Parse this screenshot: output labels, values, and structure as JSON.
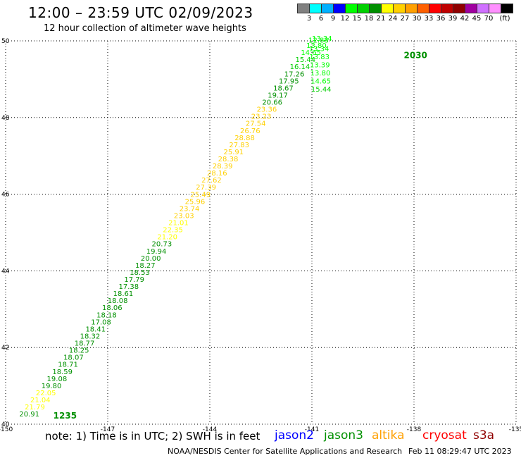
{
  "header": {
    "title": "12:00 – 23:59 UTC 02/09/2023",
    "subtitle": "12 hour collection of altimeter wave heights"
  },
  "colorbar": {
    "unit": "(ft)",
    "colors": [
      "#808080",
      "#00ffff",
      "#00b0ff",
      "#0000ff",
      "#00ff00",
      "#00d000",
      "#009000",
      "#ffff00",
      "#ffd000",
      "#ffa000",
      "#ff6000",
      "#ff0000",
      "#c00000",
      "#900000",
      "#a000a0",
      "#d070ff",
      "#ff90ff",
      "#000000"
    ],
    "labels": [
      "3",
      "6",
      "9",
      "12",
      "15",
      "18",
      "21",
      "24",
      "27",
      "30",
      "33",
      "36",
      "39",
      "42",
      "45",
      "70"
    ]
  },
  "map": {
    "x_ticks": [
      "-150",
      "-147",
      "-144",
      "-141",
      "-138",
      "-135"
    ],
    "y_ticks": [
      "50",
      "48",
      "46",
      "44",
      "42",
      "40"
    ],
    "lon_range": [
      -150,
      -135
    ],
    "lat_range": [
      40,
      50
    ],
    "gridlines": true
  },
  "footer": {
    "note": "note:  1) Time is in UTC; 2) SWH is in feet",
    "legend": [
      {
        "name": "jason2",
        "color": "#0000ff"
      },
      {
        "name": "jason3",
        "color": "#009000"
      },
      {
        "name": "altika",
        "color": "#ffa000"
      },
      {
        "name": "cryosat",
        "color": "#ff0000"
      },
      {
        "name": "s3a",
        "color": "#900000"
      }
    ],
    "credit": "NOAA/NESDIS Center for Satellite Applications and Research",
    "timestamp": "Feb 11 08:29:47 UTC 2023"
  },
  "chart_data": {
    "type": "scatter",
    "title": "12:00 – 23:59 UTC 02/09/2023",
    "subtitle": "12 hour collection of altimeter wave heights",
    "xlim": [
      -150,
      -135
    ],
    "ylim": [
      40,
      50
    ],
    "tracks": [
      {
        "time_label": "1235",
        "label_pos": [
          -148.6,
          40.15
        ],
        "start": [
          -149.6,
          40.2
        ],
        "end": [
          -141.0,
          50.0
        ],
        "values": [
          20.91,
          21.79,
          21.04,
          22.05,
          19.8,
          19.08,
          18.59,
          18.71,
          18.07,
          18.25,
          18.77,
          18.32,
          18.41,
          17.08,
          18.18,
          18.06,
          18.08,
          18.61,
          17.38,
          17.79,
          18.53,
          18.27,
          20.0,
          19.94,
          20.73,
          21.2,
          22.35,
          21.01,
          23.03,
          23.74,
          25.96,
          25.49,
          27.39,
          27.62,
          28.16,
          28.39,
          28.38,
          25.91,
          27.83,
          28.88,
          26.76,
          27.54,
          23.23,
          23.36,
          20.66,
          19.17,
          18.67,
          17.95,
          17.26,
          16.14,
          15.44,
          14.65,
          13.8,
          13.34
        ],
        "colors": [
          "#009000",
          "#ffff00",
          "#ffff00",
          "#ffff00",
          "#009000",
          "#009000",
          "#009000",
          "#009000",
          "#009000",
          "#009000",
          "#009000",
          "#009000",
          "#009000",
          "#009000",
          "#009000",
          "#009000",
          "#009000",
          "#009000",
          "#009000",
          "#009000",
          "#009000",
          "#009000",
          "#009000",
          "#009000",
          "#009000",
          "#ffff00",
          "#ffff00",
          "#ffff00",
          "#ffd000",
          "#ffd000",
          "#ffd000",
          "#ffd000",
          "#ffd000",
          "#ffd000",
          "#ffd000",
          "#ffd000",
          "#ffd000",
          "#ffd000",
          "#ffd000",
          "#ffd000",
          "#ffd000",
          "#ffd000",
          "#ffd000",
          "#ffd000",
          "#009000",
          "#009000",
          "#009000",
          "#009000",
          "#009000",
          "#00d000",
          "#00d000",
          "#00ff00",
          "#00ff00",
          "#00ff00"
        ]
      },
      {
        "time_label": "2030",
        "label_pos": [
          -138.3,
          49.55
        ],
        "start": [
          -141.1,
          49.95
        ],
        "end": [
          -140.5,
          40.1
        ],
        "values": [
          12.88,
          13.34,
          13.83,
          13.39,
          13.8,
          14.65,
          15.44
        ],
        "colors": [
          "#00ff00",
          "#00ff00",
          "#00ff00",
          "#00ff00",
          "#00ff00",
          "#00ff00",
          "#00d000"
        ]
      }
    ]
  }
}
